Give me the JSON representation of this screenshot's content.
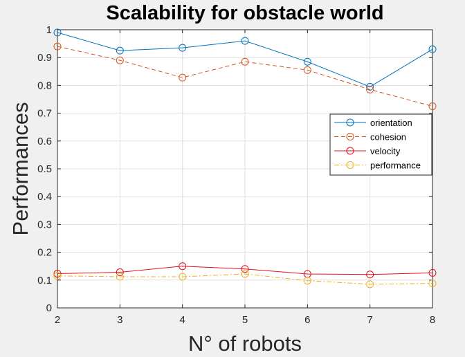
{
  "chart_data": {
    "type": "line",
    "title": "Scalability for obstacle world",
    "xlabel": "N° of robots",
    "ylabel": "Performances",
    "x": [
      2,
      3,
      4,
      5,
      6,
      7,
      8
    ],
    "xlim": [
      2,
      8
    ],
    "ylim": [
      0,
      1
    ],
    "xticks": [
      "2",
      "3",
      "4",
      "5",
      "6",
      "7",
      "8"
    ],
    "yticks": [
      "0",
      "0.1",
      "0.2",
      "0.3",
      "0.4",
      "0.5",
      "0.6",
      "0.7",
      "0.8",
      "0.9",
      "1"
    ],
    "grid": true,
    "legend_position": "right",
    "series": [
      {
        "name": "orientation",
        "values": [
          0.99,
          0.925,
          0.935,
          0.96,
          0.885,
          0.795,
          0.93
        ],
        "color": "#0072bd",
        "dash": "solid"
      },
      {
        "name": "cohesion",
        "values": [
          0.94,
          0.89,
          0.828,
          0.885,
          0.855,
          0.785,
          0.725
        ],
        "color": "#d95319",
        "dash": "dashed"
      },
      {
        "name": "velocity",
        "values": [
          0.123,
          0.128,
          0.15,
          0.14,
          0.122,
          0.12,
          0.126
        ],
        "color": "#e0101a",
        "dash": "solid"
      },
      {
        "name": "performance",
        "values": [
          0.115,
          0.112,
          0.112,
          0.122,
          0.098,
          0.085,
          0.088
        ],
        "color": "#edb120",
        "dash": "dashdot"
      }
    ]
  }
}
